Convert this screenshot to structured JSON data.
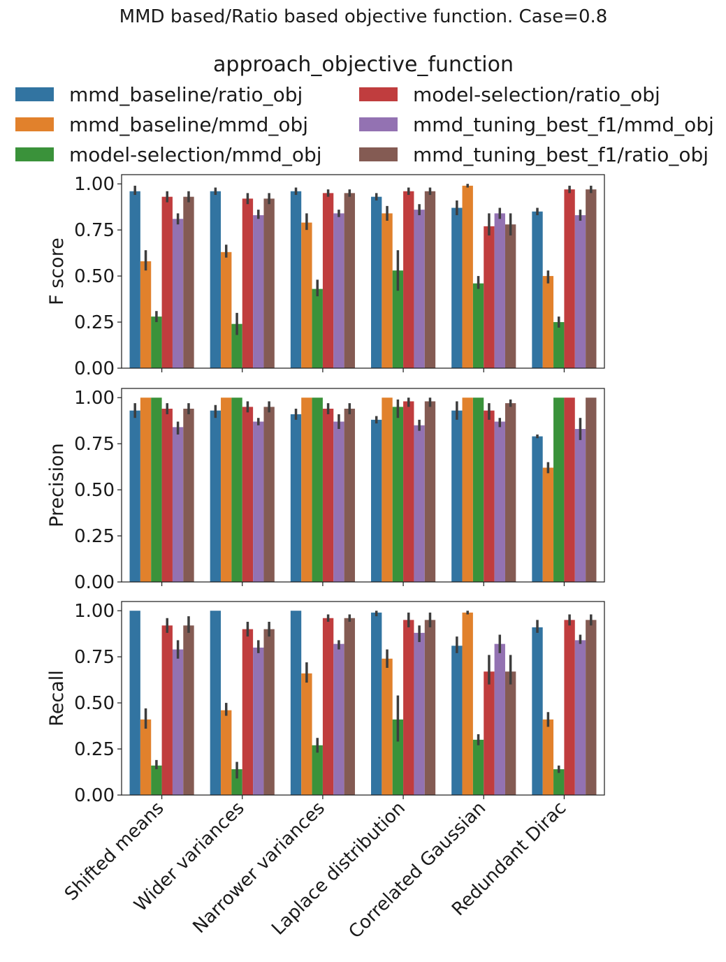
{
  "chart_data": {
    "type": "bar",
    "title": "MMD based/Ratio based objective function. Case=0.8",
    "legend": {
      "title": "approach_objective_function",
      "placement": "top"
    },
    "categories": [
      "Shifted means",
      "Wider variances",
      "Narrower variances",
      "Laplace distribution",
      "Correlated Gaussian",
      "Redundant Dirac"
    ],
    "series": [
      {
        "name": "mmd_baseline/ratio_obj",
        "color": "#3274a1"
      },
      {
        "name": "mmd_baseline/mmd_obj",
        "color": "#e1812c"
      },
      {
        "name": "model-selection/mmd_obj",
        "color": "#3a923a"
      },
      {
        "name": "model-selection/ratio_obj",
        "color": "#c03d3e"
      },
      {
        "name": "mmd_tuning_best_f1/mmd_obj",
        "color": "#9372b2"
      },
      {
        "name": "mmd_tuning_best_f1/ratio_obj",
        "color": "#845b53"
      }
    ],
    "yticks": [
      "0.00",
      "0.25",
      "0.50",
      "0.75",
      "1.00"
    ],
    "ylim": [
      0,
      1.05
    ],
    "panels": [
      {
        "ylabel": "F score",
        "values": [
          [
            0.96,
            0.58,
            0.28,
            0.93,
            0.81,
            0.93
          ],
          [
            0.96,
            0.63,
            0.24,
            0.92,
            0.83,
            0.92
          ],
          [
            0.96,
            0.79,
            0.43,
            0.95,
            0.84,
            0.95
          ],
          [
            0.93,
            0.84,
            0.53,
            0.96,
            0.86,
            0.96
          ],
          [
            0.87,
            0.99,
            0.46,
            0.77,
            0.84,
            0.78
          ],
          [
            0.85,
            0.5,
            0.25,
            0.97,
            0.83,
            0.97
          ]
        ],
        "errors": [
          [
            [
              0.94,
              0.99
            ],
            [
              0.53,
              0.64
            ],
            [
              0.25,
              0.31
            ],
            [
              0.9,
              0.96
            ],
            [
              0.78,
              0.84
            ],
            [
              0.9,
              0.96
            ]
          ],
          [
            [
              0.94,
              0.98
            ],
            [
              0.6,
              0.67
            ],
            [
              0.18,
              0.3
            ],
            [
              0.89,
              0.95
            ],
            [
              0.81,
              0.86
            ],
            [
              0.89,
              0.95
            ]
          ],
          [
            [
              0.94,
              0.98
            ],
            [
              0.75,
              0.84
            ],
            [
              0.39,
              0.48
            ],
            [
              0.93,
              0.97
            ],
            [
              0.82,
              0.86
            ],
            [
              0.93,
              0.97
            ]
          ],
          [
            [
              0.91,
              0.95
            ],
            [
              0.8,
              0.88
            ],
            [
              0.42,
              0.64
            ],
            [
              0.94,
              0.98
            ],
            [
              0.83,
              0.89
            ],
            [
              0.94,
              0.98
            ]
          ],
          [
            [
              0.83,
              0.91
            ],
            [
              0.98,
              1.0
            ],
            [
              0.43,
              0.5
            ],
            [
              0.72,
              0.84
            ],
            [
              0.81,
              0.87
            ],
            [
              0.72,
              0.84
            ]
          ],
          [
            [
              0.83,
              0.87
            ],
            [
              0.46,
              0.53
            ],
            [
              0.22,
              0.28
            ],
            [
              0.95,
              0.99
            ],
            [
              0.8,
              0.86
            ],
            [
              0.95,
              0.99
            ]
          ]
        ]
      },
      {
        "ylabel": "Precision",
        "values": [
          [
            0.93,
            1.0,
            1.0,
            0.94,
            0.84,
            0.94
          ],
          [
            0.93,
            1.0,
            1.0,
            0.95,
            0.87,
            0.95
          ],
          [
            0.91,
            1.0,
            1.0,
            0.94,
            0.87,
            0.94
          ],
          [
            0.88,
            1.0,
            0.95,
            0.98,
            0.85,
            0.98
          ],
          [
            0.93,
            1.0,
            1.0,
            0.93,
            0.87,
            0.97
          ],
          [
            0.79,
            0.62,
            1.0,
            1.0,
            0.83,
            1.0
          ]
        ],
        "errors": [
          [
            [
              0.89,
              0.97
            ],
            null,
            null,
            [
              0.91,
              0.97
            ],
            [
              0.8,
              0.87
            ],
            [
              0.91,
              0.97
            ]
          ],
          [
            [
              0.89,
              0.96
            ],
            null,
            null,
            [
              0.92,
              0.98
            ],
            [
              0.85,
              0.89
            ],
            [
              0.92,
              0.98
            ]
          ],
          [
            [
              0.88,
              0.94
            ],
            null,
            null,
            [
              0.91,
              0.97
            ],
            [
              0.83,
              0.91
            ],
            [
              0.91,
              0.97
            ]
          ],
          [
            [
              0.86,
              0.9
            ],
            null,
            [
              0.89,
              0.99
            ],
            [
              0.95,
              1.0
            ],
            [
              0.82,
              0.88
            ],
            [
              0.95,
              1.0
            ]
          ],
          [
            [
              0.88,
              0.98
            ],
            null,
            null,
            [
              0.88,
              0.97
            ],
            [
              0.84,
              0.89
            ],
            [
              0.95,
              0.99
            ]
          ],
          [
            [
              0.78,
              0.8
            ],
            [
              0.59,
              0.65
            ],
            null,
            null,
            [
              0.77,
              0.89
            ],
            null
          ]
        ]
      },
      {
        "ylabel": "Recall",
        "values": [
          [
            1.0,
            0.41,
            0.16,
            0.92,
            0.79,
            0.92
          ],
          [
            1.0,
            0.46,
            0.14,
            0.9,
            0.8,
            0.9
          ],
          [
            1.0,
            0.66,
            0.27,
            0.96,
            0.82,
            0.96
          ],
          [
            0.99,
            0.74,
            0.41,
            0.95,
            0.88,
            0.95
          ],
          [
            0.81,
            0.99,
            0.3,
            0.67,
            0.82,
            0.67
          ],
          [
            0.91,
            0.41,
            0.14,
            0.95,
            0.84,
            0.95
          ]
        ],
        "errors": [
          [
            null,
            [
              0.36,
              0.47
            ],
            [
              0.14,
              0.19
            ],
            [
              0.88,
              0.96
            ],
            [
              0.74,
              0.84
            ],
            [
              0.88,
              0.97
            ]
          ],
          [
            null,
            [
              0.43,
              0.5
            ],
            [
              0.09,
              0.18
            ],
            [
              0.86,
              0.94
            ],
            [
              0.77,
              0.84
            ],
            [
              0.86,
              0.94
            ]
          ],
          [
            null,
            [
              0.61,
              0.72
            ],
            [
              0.23,
              0.31
            ],
            [
              0.94,
              0.98
            ],
            [
              0.79,
              0.84
            ],
            [
              0.94,
              0.98
            ]
          ],
          [
            [
              0.97,
              1.0
            ],
            [
              0.69,
              0.79
            ],
            [
              0.29,
              0.54
            ],
            [
              0.91,
              0.99
            ],
            [
              0.83,
              0.92
            ],
            [
              0.91,
              0.99
            ]
          ],
          [
            [
              0.77,
              0.86
            ],
            [
              0.98,
              1.0
            ],
            [
              0.27,
              0.33
            ],
            [
              0.6,
              0.76
            ],
            [
              0.77,
              0.87
            ],
            [
              0.6,
              0.76
            ]
          ],
          [
            [
              0.88,
              0.95
            ],
            [
              0.37,
              0.45
            ],
            [
              0.12,
              0.16
            ],
            [
              0.92,
              0.98
            ],
            [
              0.82,
              0.87
            ],
            [
              0.92,
              0.98
            ]
          ]
        ]
      }
    ]
  }
}
